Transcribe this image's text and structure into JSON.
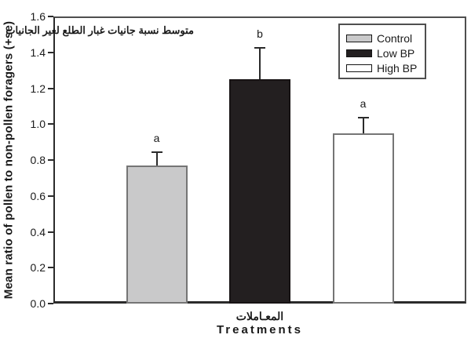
{
  "chart_data": {
    "type": "bar",
    "title_arabic_note": "متوسط نسبة جانيات غبار الطلع لغير الجانيات",
    "ylabel": "Mean ratio of pollen to non-pollen foragers (+se)",
    "xlabel_arabic": "المعـاملات",
    "xlabel": "Treatments",
    "ylim": [
      0,
      1.6
    ],
    "ytick_interval": 0.2,
    "yticks": [
      "0.0",
      "0.2",
      "0.4",
      "0.6",
      "0.8",
      "1.0",
      "1.2",
      "1.4",
      "1.6"
    ],
    "grid": false,
    "legend_position": "top-right",
    "categories": [
      "Control",
      "Low BP",
      "High BP"
    ],
    "bars": [
      {
        "category": "Control",
        "value": 0.77,
        "se": 0.07,
        "sig_letter": "a",
        "fill": "#c9c9ca",
        "border": "#757575"
      },
      {
        "category": "Low BP",
        "value": 1.25,
        "se": 0.17,
        "sig_letter": "b",
        "fill": "#231f20",
        "border": "#171314"
      },
      {
        "category": "High BP",
        "value": 0.95,
        "se": 0.08,
        "sig_letter": "a",
        "fill": "#ffffff",
        "border": "#757575"
      }
    ],
    "legend": [
      {
        "label": "Control",
        "fill": "#c9c9ca"
      },
      {
        "label": "Low BP",
        "fill": "#231f20"
      },
      {
        "label": "High BP",
        "fill": "#ffffff"
      }
    ],
    "colors": {
      "frame": "#4f4f4f",
      "axis": "#2b2b2b",
      "error_bar": "#2b2b2b",
      "text": "#1a1a1a",
      "background": "#ffffff"
    }
  }
}
